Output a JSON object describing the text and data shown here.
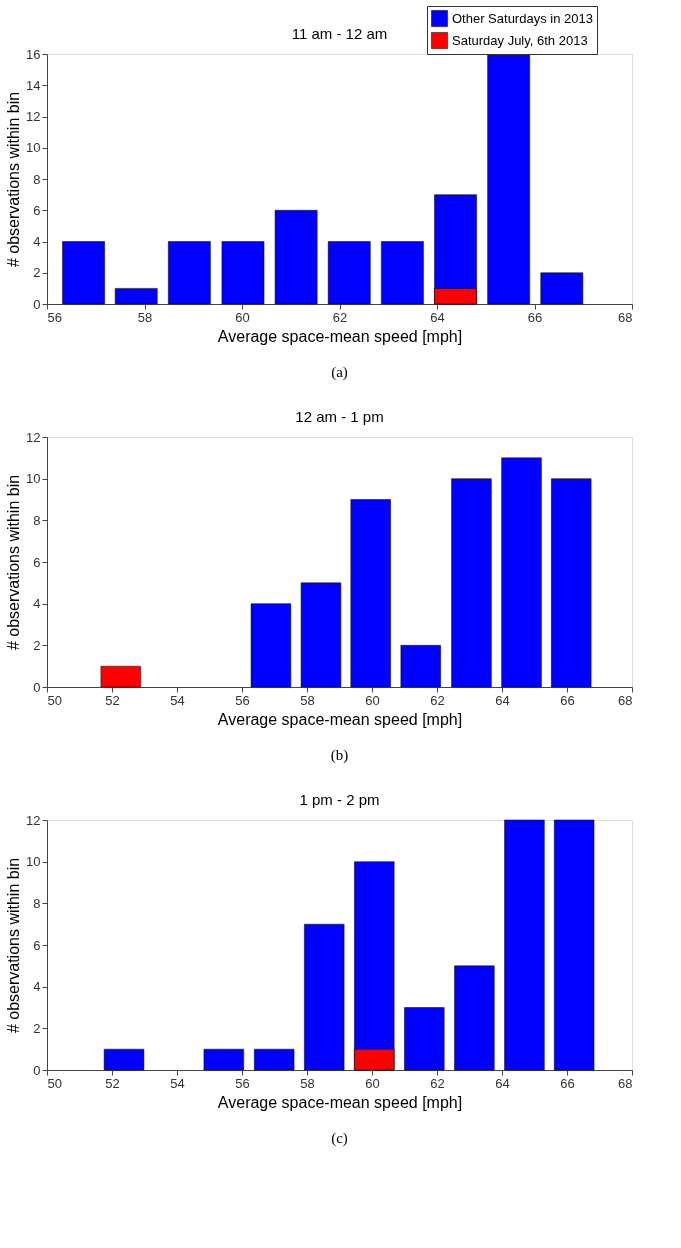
{
  "chart_data": [
    {
      "type": "bar",
      "title": "11 am - 12 am",
      "xlabel": "Average space-mean speed [mph]",
      "ylabel": "# observations within bin",
      "series": [
        {
          "name": "Other Saturdays in 2013",
          "color": "#0000ff",
          "x": [
            56.75,
            57.83,
            58.92,
            60.02,
            61.11,
            62.2,
            63.29,
            64.38,
            65.47,
            66.56
          ],
          "values": [
            4,
            1,
            4,
            4,
            6,
            4,
            4,
            7,
            16,
            2
          ]
        },
        {
          "name": "Saturday July, 6th 2013",
          "color": "#ff0000",
          "x": [
            64.38
          ],
          "values": [
            1
          ]
        }
      ],
      "xlim": [
        56,
        68
      ],
      "xticks": [
        56,
        58,
        60,
        62,
        64,
        66,
        68
      ],
      "ylim": [
        0,
        16
      ],
      "yticks": [
        0,
        2,
        4,
        6,
        8,
        10,
        12,
        14,
        16
      ],
      "legend": "top right",
      "annotations": [
        "(a)"
      ]
    },
    {
      "type": "bar",
      "title": "12 am - 1 pm",
      "xlabel": "Average space-mean speed [mph]",
      "ylabel": "# observations within bin",
      "series": [
        {
          "name": "Other Saturdays in 2013",
          "color": "#0000ff",
          "x": [
            56.89,
            58.43,
            59.96,
            61.5,
            63.06,
            64.6,
            66.13
          ],
          "values": [
            4,
            5,
            9,
            2,
            10,
            11,
            10
          ]
        },
        {
          "name": "Saturday July, 6th 2013",
          "color": "#ff0000",
          "x": [
            52.27
          ],
          "values": [
            1
          ]
        }
      ],
      "xlim": [
        50,
        68
      ],
      "xticks": [
        50,
        52,
        54,
        56,
        58,
        60,
        62,
        64,
        66,
        68
      ],
      "ylim": [
        0,
        12
      ],
      "yticks": [
        0,
        2,
        4,
        6,
        8,
        10,
        12
      ],
      "legend": "top right",
      "annotations": [
        "(b)"
      ]
    },
    {
      "type": "bar",
      "title": "1 pm - 2 pm",
      "xlabel": "Average space-mean speed [mph]",
      "ylabel": "# observations within bin",
      "series": [
        {
          "name": "Other Saturdays in 2013",
          "color": "#0000ff",
          "x": [
            52.37,
            55.44,
            56.99,
            58.53,
            60.07,
            61.61,
            63.15,
            64.69,
            66.22
          ],
          "values": [
            1,
            1,
            1,
            7,
            10,
            3,
            5,
            12,
            12
          ]
        },
        {
          "name": "Saturday July, 6th 2013",
          "color": "#ff0000",
          "x": [
            60.07
          ],
          "values": [
            1
          ]
        }
      ],
      "xlim": [
        50,
        68
      ],
      "xticks": [
        50,
        52,
        54,
        56,
        58,
        60,
        62,
        64,
        66,
        68
      ],
      "ylim": [
        0,
        12
      ],
      "yticks": [
        0,
        2,
        4,
        6,
        8,
        10,
        12
      ],
      "legend": "top right",
      "annotations": [
        "(c)"
      ]
    }
  ]
}
